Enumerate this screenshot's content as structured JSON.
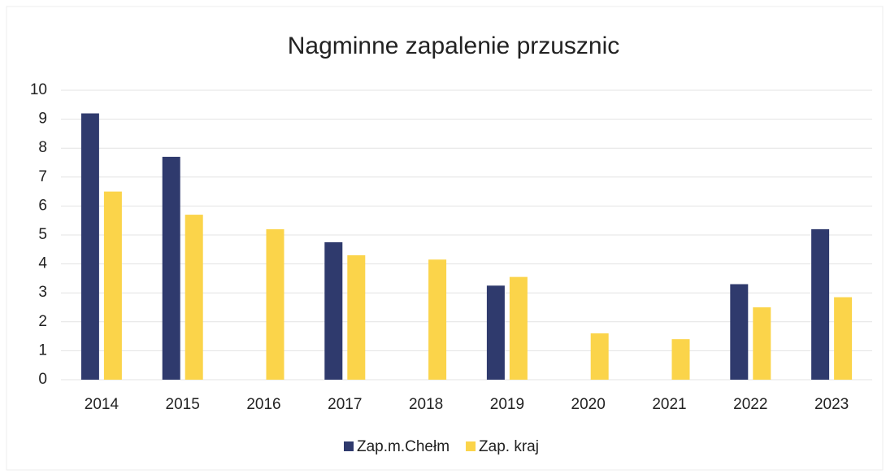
{
  "chart_data": {
    "type": "bar",
    "title": "Nagminne zapalenie przusznic",
    "categories": [
      "2014",
      "2015",
      "2016",
      "2017",
      "2018",
      "2019",
      "2020",
      "2021",
      "2022",
      "2023"
    ],
    "series": [
      {
        "name": "Zap.m.Chełm",
        "color": "#2f3a6d",
        "values": [
          9.2,
          7.7,
          0,
          4.75,
          0,
          3.25,
          0,
          0,
          3.3,
          5.2
        ]
      },
      {
        "name": "Zap. kraj",
        "color": "#fbd44a",
        "values": [
          6.5,
          5.7,
          5.2,
          4.3,
          4.15,
          3.55,
          1.6,
          1.4,
          2.5,
          2.85
        ]
      }
    ],
    "ylim": [
      0,
      10
    ],
    "yticks": [
      0,
      1,
      2,
      3,
      4,
      5,
      6,
      7,
      8,
      9,
      10
    ],
    "grid": true,
    "legend": "bottom"
  }
}
